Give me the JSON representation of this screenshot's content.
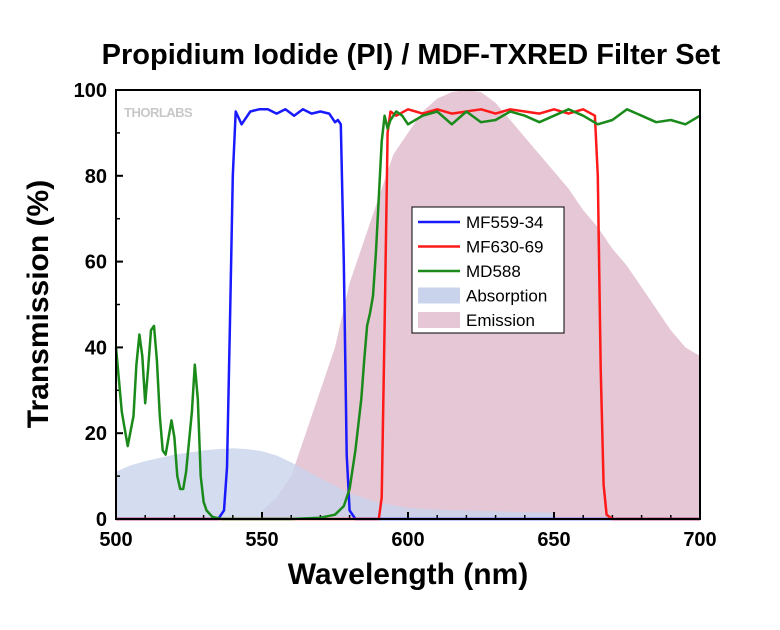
{
  "chart_data": {
    "type": "line",
    "title": "Propidium Iodide (PI) / MDF-TXRED Filter Set",
    "xlabel": "Wavelength (nm)",
    "ylabel": "Transmission (%)",
    "xlim": [
      500,
      700
    ],
    "ylim": [
      0,
      100
    ],
    "xticks": [
      "500",
      "550",
      "600",
      "650",
      "700"
    ],
    "yticks": [
      "0",
      "20",
      "40",
      "60",
      "80",
      "100"
    ],
    "watermark": "THORLABS",
    "legend_position": "center-right",
    "series": [
      {
        "name": "MF559-34",
        "kind": "line",
        "color": "#1a1aff",
        "x": [
          500,
          535,
          537,
          538,
          539,
          540,
          541,
          543,
          546,
          549,
          552,
          555,
          558,
          561,
          564,
          567,
          570,
          573,
          575,
          576,
          577,
          578,
          579,
          580,
          582,
          700
        ],
        "y": [
          0,
          0,
          2,
          12,
          45,
          80,
          95,
          92,
          95,
          95.5,
          95.5,
          94.5,
          95.5,
          94,
          95.5,
          94.5,
          95,
          94.5,
          92.5,
          93,
          92,
          60,
          15,
          2,
          0,
          0
        ]
      },
      {
        "name": "MF630-69",
        "kind": "line",
        "color": "#ff1a1a",
        "x": [
          500,
          590,
          591,
          592,
          593,
          594,
          596,
          600,
          605,
          610,
          615,
          620,
          625,
          630,
          635,
          640,
          645,
          650,
          655,
          660,
          664,
          665,
          666,
          667,
          668,
          670,
          700
        ],
        "y": [
          0,
          0,
          5,
          45,
          90,
          95,
          94,
          95.5,
          94.5,
          95.5,
          94.5,
          95,
          95.5,
          94.5,
          95.5,
          95,
          94.5,
          95.5,
          94.5,
          95.5,
          94,
          80,
          35,
          8,
          1,
          0,
          0
        ]
      },
      {
        "name": "MD588",
        "kind": "line",
        "color": "#1a8a1a",
        "x": [
          500,
          502,
          504,
          506,
          507,
          508,
          509,
          510,
          511,
          512,
          513,
          514,
          515,
          516,
          517,
          518,
          519,
          520,
          521,
          522,
          523,
          524,
          526,
          527,
          528,
          529,
          530,
          531,
          533,
          536,
          540,
          560,
          570,
          575,
          578,
          580,
          582,
          584,
          585,
          586,
          587,
          588,
          589,
          590,
          591,
          592,
          593,
          594,
          596,
          598,
          600,
          605,
          610,
          615,
          620,
          625,
          630,
          635,
          640,
          645,
          650,
          655,
          660,
          665,
          670,
          675,
          680,
          685,
          690,
          695,
          700
        ],
        "y": [
          40,
          25,
          17,
          24,
          36,
          43,
          38,
          27,
          35,
          44,
          45,
          37,
          24,
          16,
          15,
          19,
          23,
          19,
          10,
          7,
          7,
          11,
          25,
          36,
          28,
          10,
          4,
          2,
          0.5,
          0,
          0,
          0,
          0.3,
          1,
          3,
          7,
          16,
          28,
          37,
          45,
          48,
          52,
          62,
          75,
          88,
          94,
          91,
          93,
          95,
          94,
          92,
          94,
          95,
          92,
          95,
          92.5,
          93,
          95,
          94,
          92.5,
          94,
          95.5,
          94,
          92,
          93,
          95.5,
          94,
          92.5,
          93,
          92,
          94
        ]
      },
      {
        "name": "Absorption",
        "kind": "area",
        "color": "#c9d3ec",
        "x": [
          500,
          505,
          510,
          520,
          530,
          535,
          540,
          545,
          550,
          555,
          560,
          570,
          580,
          590,
          600,
          610,
          620,
          630,
          640,
          650
        ],
        "y": [
          11,
          12.5,
          13.5,
          15,
          16,
          16.3,
          16.5,
          16.3,
          15.8,
          14.8,
          13.2,
          9.5,
          6,
          3.8,
          2.6,
          2.2,
          2,
          1.8,
          1.6,
          1.5
        ]
      },
      {
        "name": "Emission",
        "kind": "area",
        "color": "#e6c7d5",
        "x": [
          550,
          555,
          560,
          565,
          570,
          575,
          580,
          585,
          590,
          595,
          600,
          605,
          610,
          615,
          620,
          625,
          630,
          635,
          640,
          645,
          650,
          655,
          660,
          665,
          670,
          675,
          680,
          685,
          690,
          695,
          700
        ],
        "y": [
          2,
          5,
          10,
          20,
          30,
          40,
          55,
          65,
          75,
          85,
          90,
          95,
          98,
          99.5,
          100,
          99.5,
          97,
          93,
          89,
          85,
          81,
          77,
          72,
          68,
          63,
          59,
          54,
          49,
          44,
          40,
          38
        ]
      }
    ]
  }
}
